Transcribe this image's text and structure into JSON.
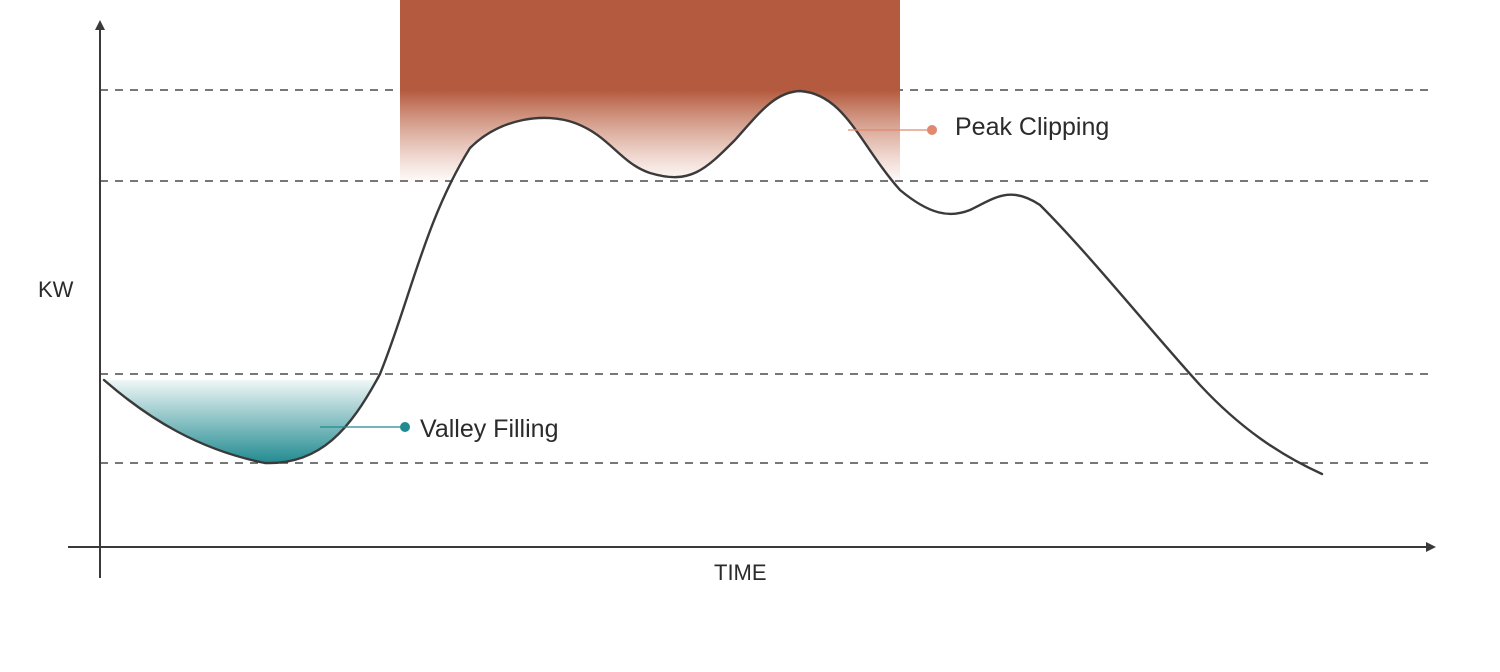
{
  "axes": {
    "y_label": "KW",
    "x_label": "TIME"
  },
  "annotations": {
    "peak": {
      "label": "Peak Clipping",
      "color": "#c0654a",
      "dot_color": "#e0896e"
    },
    "valley": {
      "label": "Valley Filling",
      "color": "#1f8a8f",
      "dot_color": "#1f8a8f"
    }
  },
  "colors": {
    "curve": "#3a3a3a",
    "axis": "#3a3a3a",
    "gridline": "#4a4a4a",
    "peak_fill": "#b9634a",
    "valley_fill": "#1f8a8f"
  },
  "reference_lines": [
    "peak-upper",
    "peak-threshold",
    "valley-threshold",
    "valley-lower"
  ]
}
